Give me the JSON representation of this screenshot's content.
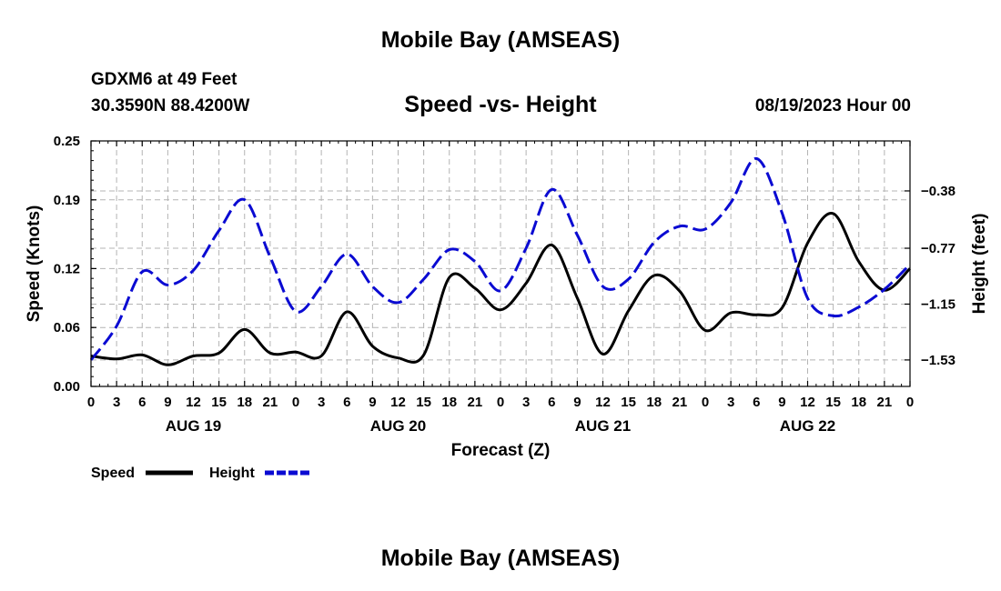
{
  "header": {
    "title": "Mobile Bay (AMSEAS)",
    "station": "GDXM6 at 49 Feet",
    "coords": "30.3590N  88.4200W",
    "chart_title": "Speed -vs- Height",
    "datetime": "08/19/2023 Hour 00"
  },
  "footer": {
    "title": "Mobile Bay (AMSEAS)"
  },
  "colors": {
    "speed": "#000000",
    "height": "#0a0ad2",
    "grid": "#b4b4b4"
  },
  "chart_data": {
    "type": "line",
    "title": "Speed -vs- Height",
    "xlabel": "Forecast (Z)",
    "ylabel": "Speed (Knots)",
    "y2label": "Height (feet)",
    "x": [
      0,
      3,
      6,
      9,
      12,
      15,
      18,
      21,
      24,
      27,
      30,
      33,
      36,
      39,
      42,
      45,
      48,
      51,
      54,
      57,
      60,
      63,
      66,
      69,
      72,
      75,
      78,
      81,
      84,
      87,
      90,
      93,
      96
    ],
    "x_tick_labels": [
      "0",
      "3",
      "6",
      "9",
      "12",
      "15",
      "18",
      "21",
      "0",
      "3",
      "6",
      "9",
      "12",
      "15",
      "18",
      "21",
      "0",
      "3",
      "6",
      "9",
      "12",
      "15",
      "18",
      "21",
      "0",
      "3",
      "6",
      "9",
      "12",
      "15",
      "18",
      "21",
      "0"
    ],
    "date_labels": [
      {
        "label": "AUG 19",
        "x": 12
      },
      {
        "label": "AUG 20",
        "x": 36
      },
      {
        "label": "AUG 21",
        "x": 60
      },
      {
        "label": "AUG 22",
        "x": 84
      }
    ],
    "ylim": [
      0,
      0.25
    ],
    "y_ticks": [
      "0.00",
      "0.06",
      "0.12",
      "0.19",
      "0.25"
    ],
    "y2lim": [
      -1.71,
      -0.04
    ],
    "y2_ticks": [
      "-1.53",
      "-1.15",
      "-0.77",
      "-0.38"
    ],
    "series": [
      {
        "name": "Speed",
        "axis": "left",
        "style": "solid",
        "values": [
          0.031,
          0.028,
          0.032,
          0.022,
          0.031,
          0.034,
          0.058,
          0.034,
          0.035,
          0.031,
          0.076,
          0.041,
          0.029,
          0.032,
          0.111,
          0.1,
          0.078,
          0.105,
          0.144,
          0.09,
          0.033,
          0.077,
          0.113,
          0.097,
          0.057,
          0.075,
          0.073,
          0.08,
          0.146,
          0.176,
          0.127,
          0.098,
          0.12
        ]
      },
      {
        "name": "Height",
        "axis": "right",
        "style": "dashed",
        "values": [
          -1.53,
          -1.3,
          -0.93,
          -1.02,
          -0.92,
          -0.65,
          -0.44,
          -0.83,
          -1.2,
          -1.03,
          -0.81,
          -1.03,
          -1.14,
          -0.98,
          -0.78,
          -0.86,
          -1.06,
          -0.77,
          -0.37,
          -0.68,
          -1.03,
          -0.98,
          -0.73,
          -0.62,
          -0.64,
          -0.46,
          -0.16,
          -0.53,
          -1.11,
          -1.23,
          -1.17,
          -1.05,
          -0.88
        ]
      }
    ],
    "legend": [
      {
        "label": "Speed",
        "style": "solid"
      },
      {
        "label": "Height",
        "style": "dashed"
      }
    ],
    "legend_position": "bottom-left",
    "grid": true
  }
}
